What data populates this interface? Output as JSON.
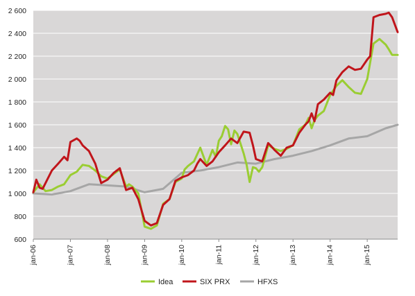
{
  "chart_data": {
    "type": "line",
    "title": "",
    "xlabel": "",
    "ylabel": "",
    "ylim": [
      600,
      2600
    ],
    "y_ticks": [
      600,
      800,
      1000,
      1200,
      1400,
      1600,
      1800,
      2000,
      2200,
      2400,
      2600
    ],
    "y_tick_labels": [
      "600",
      "800",
      "1 000",
      "1 200",
      "1 400",
      "1 600",
      "1 800",
      "2 000",
      "2 200",
      "2 400",
      "2 600"
    ],
    "x_range": [
      2006.0,
      2015.82
    ],
    "x_ticks": [
      2006,
      2007,
      2008,
      2009,
      2010,
      2011,
      2012,
      2013,
      2014,
      2015
    ],
    "x_tick_labels": [
      "jan-06",
      "jan-07",
      "jan-08",
      "jan-09",
      "jan-10",
      "jan-11",
      "jan-12",
      "jan-13",
      "jan-14",
      "jan-15"
    ],
    "grid": "horizontal",
    "plot_background": "#d9d7d7",
    "legend_position": "bottom",
    "series": [
      {
        "name": "Idea",
        "color": "#9acd32",
        "x": [
          2006.0,
          2006.17,
          2006.33,
          2006.5,
          2006.67,
          2006.83,
          2007.0,
          2007.17,
          2007.33,
          2007.5,
          2007.67,
          2007.83,
          2008.0,
          2008.17,
          2008.33,
          2008.5,
          2008.58,
          2008.67,
          2008.83,
          2009.0,
          2009.17,
          2009.33,
          2009.5,
          2009.67,
          2009.83,
          2010.0,
          2010.08,
          2010.17,
          2010.25,
          2010.33,
          2010.5,
          2010.67,
          2010.83,
          2010.92,
          2011.0,
          2011.08,
          2011.17,
          2011.25,
          2011.33,
          2011.42,
          2011.5,
          2011.58,
          2011.67,
          2011.75,
          2011.83,
          2011.92,
          2012.0,
          2012.08,
          2012.17,
          2012.33,
          2012.5,
          2012.67,
          2012.83,
          2013.0,
          2013.17,
          2013.33,
          2013.42,
          2013.5,
          2013.58,
          2013.67,
          2013.83,
          2014.0,
          2014.17,
          2014.33,
          2014.5,
          2014.67,
          2014.83,
          2015.0,
          2015.17,
          2015.33,
          2015.5,
          2015.58,
          2015.67,
          2015.82
        ],
        "values": [
          1010,
          1080,
          1020,
          1030,
          1060,
          1080,
          1160,
          1190,
          1250,
          1240,
          1200,
          1150,
          1130,
          1170,
          1210,
          1060,
          1080,
          1060,
          1000,
          710,
          690,
          720,
          910,
          950,
          1100,
          1130,
          1210,
          1240,
          1260,
          1280,
          1400,
          1250,
          1380,
          1320,
          1460,
          1500,
          1590,
          1560,
          1430,
          1550,
          1520,
          1440,
          1350,
          1250,
          1100,
          1230,
          1220,
          1190,
          1230,
          1420,
          1390,
          1370,
          1390,
          1420,
          1560,
          1600,
          1660,
          1570,
          1640,
          1680,
          1720,
          1860,
          1940,
          1990,
          1930,
          1880,
          1870,
          2000,
          2310,
          2350,
          2300,
          2260,
          2210,
          2210
        ]
      },
      {
        "name": "SIX PRX",
        "color": "#c0151b",
        "x": [
          2006.0,
          2006.08,
          2006.17,
          2006.25,
          2006.33,
          2006.5,
          2006.67,
          2006.83,
          2006.92,
          2007.0,
          2007.17,
          2007.25,
          2007.33,
          2007.5,
          2007.67,
          2007.83,
          2008.0,
          2008.17,
          2008.33,
          2008.5,
          2008.67,
          2008.83,
          2009.0,
          2009.17,
          2009.33,
          2009.5,
          2009.67,
          2009.83,
          2010.0,
          2010.17,
          2010.33,
          2010.42,
          2010.5,
          2010.67,
          2010.83,
          2011.0,
          2011.17,
          2011.33,
          2011.5,
          2011.67,
          2011.83,
          2011.92,
          2012.0,
          2012.17,
          2012.33,
          2012.42,
          2012.5,
          2012.67,
          2012.83,
          2013.0,
          2013.17,
          2013.33,
          2013.42,
          2013.5,
          2013.58,
          2013.67,
          2013.83,
          2014.0,
          2014.08,
          2014.17,
          2014.33,
          2014.5,
          2014.67,
          2014.83,
          2015.0,
          2015.08,
          2015.17,
          2015.33,
          2015.5,
          2015.58,
          2015.67,
          2015.82
        ],
        "values": [
          1010,
          1120,
          1050,
          1040,
          1090,
          1200,
          1260,
          1320,
          1290,
          1450,
          1480,
          1460,
          1420,
          1370,
          1260,
          1090,
          1120,
          1180,
          1220,
          1030,
          1050,
          950,
          760,
          720,
          740,
          900,
          950,
          1110,
          1140,
          1160,
          1200,
          1260,
          1300,
          1240,
          1280,
          1360,
          1420,
          1480,
          1440,
          1540,
          1530,
          1420,
          1300,
          1280,
          1440,
          1410,
          1380,
          1330,
          1400,
          1420,
          1530,
          1600,
          1630,
          1700,
          1630,
          1780,
          1820,
          1880,
          1860,
          1990,
          2060,
          2110,
          2080,
          2090,
          2170,
          2200,
          2540,
          2560,
          2570,
          2580,
          2540,
          2410
        ]
      },
      {
        "name": "HFXS",
        "color": "#a6a6a6",
        "x": [
          2006.0,
          2006.5,
          2007.0,
          2007.5,
          2008.0,
          2008.5,
          2009.0,
          2009.5,
          2010.0,
          2010.5,
          2011.0,
          2011.5,
          2012.0,
          2012.5,
          2013.0,
          2013.5,
          2014.0,
          2014.5,
          2015.0,
          2015.5,
          2015.82
        ],
        "values": [
          1000,
          990,
          1020,
          1080,
          1070,
          1060,
          1010,
          1040,
          1180,
          1200,
          1230,
          1270,
          1260,
          1300,
          1330,
          1370,
          1420,
          1480,
          1500,
          1570,
          1600
        ]
      }
    ]
  }
}
